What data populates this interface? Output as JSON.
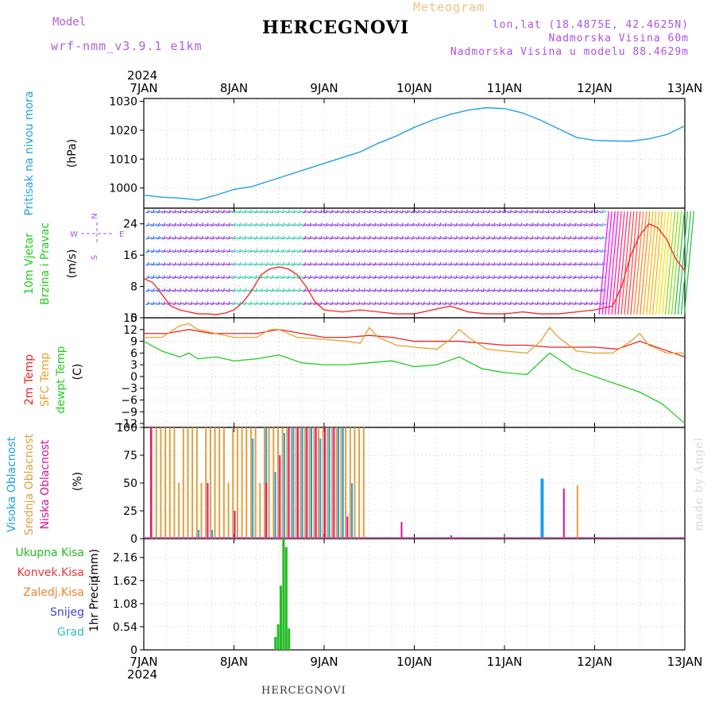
{
  "header": {
    "title": "HERCEGNOVI",
    "meteogram": "Meteogram",
    "model_label": "Model",
    "model_version": "wrf-nmm_v3.9.1 e1km",
    "lonlat": "lon,lat (18.4875E, 42.4625N)",
    "altitude": "Nadmorska Visina 60m",
    "model_altitude": "Nadmorska Visina u modelu 88.4629m"
  },
  "footer": {
    "station": "HERCEGNOVI",
    "credit": "made by Angel"
  },
  "colors": {
    "pressure": "#22a0e6",
    "wind_speed": "#ff2020",
    "temp2m": "#ee2222",
    "sfc_temp": "#e8a030",
    "dewpt": "#22cc22",
    "cloud_high": "#1aa0e8",
    "cloud_mid": "#e0a040",
    "cloud_low": "#e01090",
    "precip_total": "#22bb22"
  },
  "chart_data": [
    {
      "id": "pressure",
      "type": "line",
      "x_axis": {
        "year": "2024",
        "ticks": [
          "7JAN",
          "8JAN",
          "9JAN",
          "10JAN",
          "11JAN",
          "12JAN",
          "13JAN"
        ]
      },
      "ylabel": [
        "Pritisak na nivou mora",
        "(hPa)"
      ],
      "ylim": [
        993,
        1031
      ],
      "yticks": [
        1000,
        1010,
        1020,
        1030
      ],
      "series": [
        {
          "color": "#22a0e6",
          "x": [
            0,
            0.2,
            0.4,
            0.6,
            0.8,
            1.0,
            1.2,
            1.4,
            1.6,
            1.8,
            2.0,
            2.2,
            2.4,
            2.6,
            2.8,
            3.0,
            3.2,
            3.4,
            3.6,
            3.8,
            4.0,
            4.2,
            4.4,
            4.6,
            4.8,
            5.0,
            5.2,
            5.4,
            5.6,
            5.8,
            6.0
          ],
          "values": [
            997.5,
            996.8,
            996.5,
            995.8,
            997.5,
            999.5,
            1000.5,
            1002.5,
            1004.5,
            1006.5,
            1008.5,
            1010.5,
            1012.5,
            1015.5,
            1018,
            1021,
            1023.5,
            1025.5,
            1027,
            1027.8,
            1027.5,
            1026,
            1023.5,
            1020.5,
            1017.5,
            1016.5,
            1016.3,
            1016.2,
            1017,
            1018.5,
            1021.5
          ]
        }
      ],
      "grid": true
    },
    {
      "id": "wind",
      "type": "line",
      "ylabel": [
        "10m Vjetar",
        "Brzina i Pravac",
        "(m/s)"
      ],
      "compass": {
        "north": "N",
        "south": "S",
        "east": "E",
        "west": "W"
      },
      "ylim": [
        0,
        28
      ],
      "yticks": [
        0,
        8,
        16,
        24
      ],
      "series": [
        {
          "color": "#ff2020",
          "x": [
            0,
            0.1,
            0.2,
            0.3,
            0.4,
            0.5,
            0.6,
            0.7,
            0.8,
            0.9,
            1.0,
            1.1,
            1.2,
            1.3,
            1.4,
            1.5,
            1.6,
            1.7,
            1.8,
            1.9,
            2.0,
            2.2,
            2.4,
            2.6,
            2.8,
            3.0,
            3.2,
            3.4,
            3.6,
            3.8,
            4.0,
            4.2,
            4.4,
            4.6,
            4.8,
            5.0,
            5.2,
            5.3,
            5.4,
            5.5,
            5.6,
            5.7,
            5.8,
            5.9,
            6.0
          ],
          "values": [
            10,
            9,
            6,
            3,
            2,
            1.5,
            1,
            1,
            0.8,
            1.2,
            2,
            4,
            7,
            11,
            12.5,
            13,
            12.5,
            11,
            8,
            4,
            2,
            1.5,
            2,
            1.5,
            1,
            1,
            2,
            3,
            1.5,
            1,
            1,
            1.5,
            1,
            1,
            1.5,
            2,
            3,
            8,
            16,
            21,
            24,
            23,
            20,
            15,
            12
          ]
        }
      ],
      "grid": true
    },
    {
      "id": "temperature",
      "type": "line",
      "ylabel": [
        "2m Temp",
        "SFC Temp",
        "dewpt Temp",
        "(C)"
      ],
      "ylim": [
        -13,
        15
      ],
      "yticks": [
        15,
        12,
        9,
        6,
        3,
        0,
        -3,
        -6,
        -9,
        -12
      ],
      "series": [
        {
          "name": "2m Temp",
          "color": "#ee2222",
          "x": [
            0,
            0.25,
            0.5,
            0.75,
            1.0,
            1.25,
            1.5,
            1.75,
            2.0,
            2.25,
            2.5,
            2.75,
            3.0,
            3.25,
            3.5,
            3.75,
            4.0,
            4.25,
            4.5,
            4.75,
            5.0,
            5.25,
            5.5,
            5.75,
            6.0
          ],
          "values": [
            11,
            11,
            12,
            11,
            11,
            11,
            12,
            11,
            10,
            10,
            10.5,
            10,
            9,
            9,
            9,
            8.5,
            8,
            8,
            7.5,
            7.5,
            7.5,
            7,
            9,
            7,
            5
          ]
        },
        {
          "name": "SFC Temp",
          "color": "#e8a030",
          "x": [
            0,
            0.2,
            0.4,
            0.5,
            0.6,
            0.8,
            1.0,
            1.25,
            1.4,
            1.5,
            1.7,
            2.0,
            2.25,
            2.4,
            2.5,
            2.6,
            2.8,
            3.0,
            3.25,
            3.4,
            3.5,
            3.6,
            3.8,
            4.0,
            4.25,
            4.4,
            4.5,
            4.6,
            4.8,
            5.0,
            5.2,
            5.4,
            5.5,
            5.6,
            5.8,
            6.0
          ],
          "values": [
            10,
            10,
            13,
            13.5,
            12,
            11,
            10,
            10,
            12,
            12,
            10,
            9.5,
            9,
            8.5,
            12.5,
            10,
            8,
            7.5,
            7,
            9.5,
            12,
            10,
            7,
            6.5,
            6,
            9,
            12.5,
            10,
            6.5,
            6,
            6,
            9,
            11,
            8,
            6,
            6
          ]
        },
        {
          "name": "dewpt Temp",
          "color": "#22cc22",
          "x": [
            0,
            0.2,
            0.4,
            0.5,
            0.6,
            0.8,
            1.0,
            1.25,
            1.5,
            1.75,
            2.0,
            2.25,
            2.5,
            2.75,
            3.0,
            3.25,
            3.5,
            3.75,
            4.0,
            4.25,
            4.5,
            4.6,
            4.75,
            5.0,
            5.25,
            5.5,
            5.75,
            6.0
          ],
          "values": [
            9,
            6.5,
            5,
            6,
            4.5,
            5,
            4,
            4.5,
            5.5,
            3.5,
            3,
            3,
            3.5,
            4,
            2.5,
            3,
            5,
            2,
            1,
            0.5,
            6,
            4.5,
            2,
            0,
            -2,
            -4,
            -7,
            -12
          ]
        }
      ],
      "grid": true
    },
    {
      "id": "clouds",
      "type": "bar",
      "ylabel": [
        "Visoka Oblacnost",
        "Srednja Oblacnost",
        "Niska Oblacnost",
        "(%)"
      ],
      "ylim": [
        0,
        100
      ],
      "yticks": [
        0,
        25,
        50,
        75,
        100
      ],
      "series": [
        {
          "name": "Srednja Oblacnost",
          "color": "#e0a040",
          "x": [
            0.08,
            0.13,
            0.18,
            0.23,
            0.28,
            0.33,
            0.38,
            0.43,
            0.48,
            0.53,
            0.58,
            0.63,
            0.68,
            0.73,
            0.78,
            0.83,
            0.88,
            0.93,
            0.98,
            1.03,
            1.08,
            1.13,
            1.18,
            1.23,
            1.28,
            1.33,
            1.38,
            1.43,
            1.48,
            1.53,
            1.58,
            1.63,
            1.68,
            1.73,
            1.78,
            1.83,
            1.88,
            1.93,
            1.98,
            2.03,
            2.08,
            2.13,
            2.18,
            2.23,
            2.28,
            2.33,
            2.38,
            2.43,
            4.8
          ],
          "values": [
            100,
            100,
            100,
            100,
            100,
            100,
            50,
            100,
            100,
            100,
            100,
            50,
            100,
            100,
            100,
            100,
            100,
            50,
            100,
            100,
            100,
            100,
            100,
            100,
            50,
            100,
            100,
            100,
            100,
            100,
            100,
            100,
            100,
            100,
            100,
            100,
            100,
            100,
            100,
            100,
            100,
            100,
            100,
            100,
            100,
            100,
            100,
            100,
            48
          ]
        },
        {
          "name": "Visoka Oblacnost",
          "color": "#1aa0e8",
          "x": [
            0.6,
            0.75,
            1.0,
            1.2,
            1.35,
            1.45,
            1.55,
            1.65,
            1.75,
            1.85,
            1.95,
            2.05,
            2.15,
            2.2,
            2.3,
            4.4
          ],
          "values": [
            8,
            8,
            5,
            90,
            100,
            60,
            95,
            100,
            100,
            100,
            90,
            100,
            100,
            100,
            50,
            54
          ]
        },
        {
          "name": "Niska Oblacnost",
          "color": "#e01090",
          "x": [
            0.07,
            0.7,
            1.0,
            1.35,
            1.5,
            1.6,
            1.7,
            1.8,
            1.9,
            2.0,
            2.1,
            2.25,
            2.85,
            3.4,
            4.65
          ],
          "values": [
            100,
            50,
            25,
            50,
            75,
            100,
            100,
            100,
            100,
            100,
            100,
            20,
            15,
            3,
            45
          ]
        }
      ],
      "grid": true
    },
    {
      "id": "precip",
      "type": "bar",
      "legend": [
        "Ukupna Kisa",
        "Konvek.Kisa",
        "Zaledj.Kisa",
        "Snijeg",
        "Grad"
      ],
      "legend_colors": [
        "#22bb22",
        "#ee3333",
        "#f08030",
        "#4040e0",
        "#30c0b0"
      ],
      "ylabel": [
        "1hr Precip",
        "(mm)"
      ],
      "ylim": [
        0,
        2.6
      ],
      "yticks": [
        0,
        0.54,
        1.08,
        1.62,
        2.16
      ],
      "x_axis": {
        "year": "2024",
        "ticks": [
          "7JAN",
          "8JAN",
          "9JAN",
          "10JAN",
          "11JAN",
          "12JAN",
          "13JAN"
        ]
      },
      "series": [
        {
          "name": "Ukupna Kisa",
          "color": "#22bb22",
          "x": [
            1.46,
            1.49,
            1.52,
            1.55,
            1.58,
            1.61
          ],
          "values": [
            0.3,
            0.6,
            1.5,
            2.6,
            2.4,
            0.5
          ]
        }
      ],
      "grid": true
    }
  ]
}
